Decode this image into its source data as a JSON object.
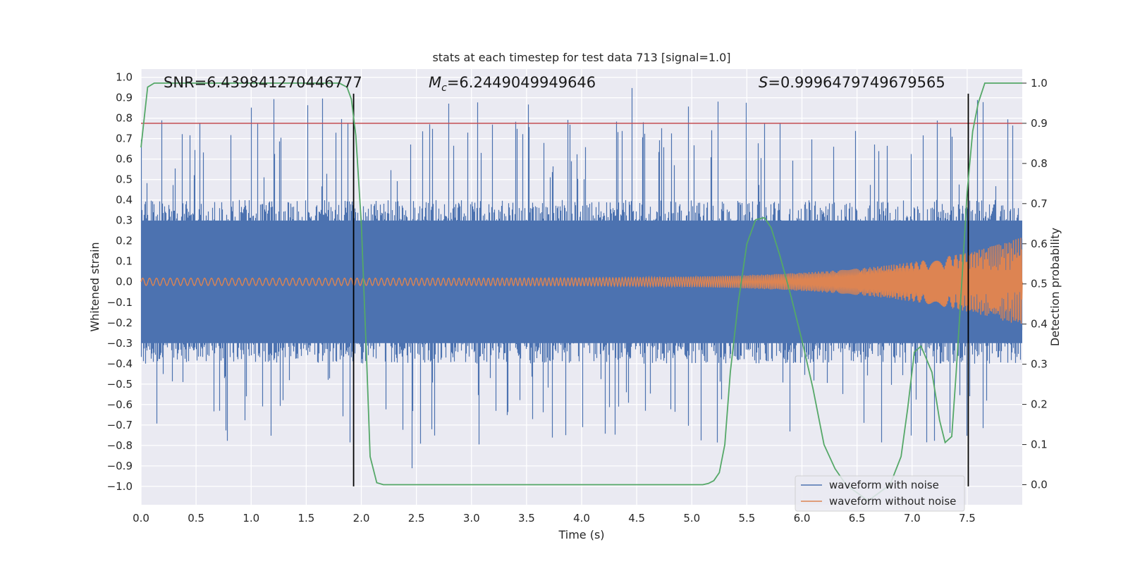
{
  "chart_data": {
    "type": "line",
    "title": "stats at each timestep for test data 713 [signal=1.0]",
    "xlabel": "Time (s)",
    "ylabel_left": "Whitened strain",
    "ylabel_right": "Detection probability",
    "xlim": [
      0.0,
      8.0
    ],
    "ylim_left": [
      -1.09,
      1.04
    ],
    "ylim_right": [
      -0.05,
      1.035
    ],
    "x_ticks": [
      "0.0",
      "0.5",
      "1.0",
      "1.5",
      "2.0",
      "2.5",
      "3.0",
      "3.5",
      "4.0",
      "4.5",
      "5.0",
      "5.5",
      "6.0",
      "6.5",
      "7.0",
      "7.5"
    ],
    "y_ticks_left": [
      "1.0",
      "0.9",
      "0.8",
      "0.7",
      "0.6",
      "0.5",
      "0.4",
      "0.3",
      "0.2",
      "0.1",
      "0.0",
      "−0.1",
      "−0.2",
      "−0.3",
      "−0.4",
      "−0.5",
      "−0.6",
      "−0.7",
      "−0.8",
      "−0.9",
      "−1.0"
    ],
    "y_ticks_right": [
      "1.0",
      "0.9",
      "0.8",
      "0.7",
      "0.6",
      "0.5",
      "0.4",
      "0.3",
      "0.2",
      "0.1",
      "0.0"
    ],
    "grid": true,
    "annotations": {
      "snr": "SNR=6.439841270446777",
      "mc_symbol": "M",
      "mc_subscript": "c",
      "mc_value": "=6.2449049949646",
      "s_symbol": "S",
      "s_value": "=0.9996479749679565"
    },
    "threshold": {
      "axis": "right",
      "value": 0.9,
      "color": "#c44e52"
    },
    "vertical_lines": [
      1.93,
      7.51
    ],
    "series": [
      {
        "name": "waveform with noise",
        "axis": "left",
        "color": "#4c72b0",
        "description": "dense noisy strain, envelope approx ±0.45 with spikes to ±1.0"
      },
      {
        "name": "waveform without noise",
        "axis": "left",
        "color": "#dd8452",
        "description": "chirp with amplitude growing from 0.02 to 0.22 near t=8"
      },
      {
        "name": "detection probability",
        "axis": "right",
        "color": "#55a868",
        "x": [
          0.0,
          0.06,
          0.12,
          0.2,
          0.4,
          0.8,
          1.2,
          1.6,
          1.8,
          1.87,
          1.91,
          1.95,
          2.0,
          2.05,
          2.08,
          2.14,
          2.2,
          2.5,
          3.0,
          3.5,
          4.0,
          4.5,
          5.0,
          5.1,
          5.15,
          5.2,
          5.25,
          5.3,
          5.35,
          5.42,
          5.5,
          5.58,
          5.66,
          5.72,
          5.8,
          5.9,
          6.0,
          6.1,
          6.2,
          6.3,
          6.4,
          6.6,
          6.8,
          6.9,
          6.96,
          7.02,
          7.08,
          7.12,
          7.18,
          7.25,
          7.3,
          7.36,
          7.4,
          7.45,
          7.5,
          7.55,
          7.6,
          7.66,
          7.72,
          7.8,
          8.0
        ],
        "y": [
          0.84,
          0.99,
          1.0,
          1.0,
          1.0,
          1.0,
          1.0,
          1.0,
          1.0,
          0.99,
          0.96,
          0.87,
          0.65,
          0.3,
          0.07,
          0.005,
          0.0,
          0.0,
          0.0,
          0.0,
          0.0,
          0.0,
          0.0,
          0.0,
          0.003,
          0.01,
          0.03,
          0.1,
          0.28,
          0.45,
          0.6,
          0.66,
          0.665,
          0.64,
          0.57,
          0.47,
          0.36,
          0.24,
          0.1,
          0.04,
          0.0,
          -0.04,
          0.0,
          0.07,
          0.19,
          0.33,
          0.345,
          0.32,
          0.28,
          0.16,
          0.105,
          0.12,
          0.28,
          0.5,
          0.73,
          0.88,
          0.95,
          1.0,
          1.0,
          1.0,
          1.0
        ]
      }
    ],
    "legend": {
      "location": "lower-right",
      "entries": [
        "waveform with noise",
        "waveform without noise"
      ]
    }
  }
}
